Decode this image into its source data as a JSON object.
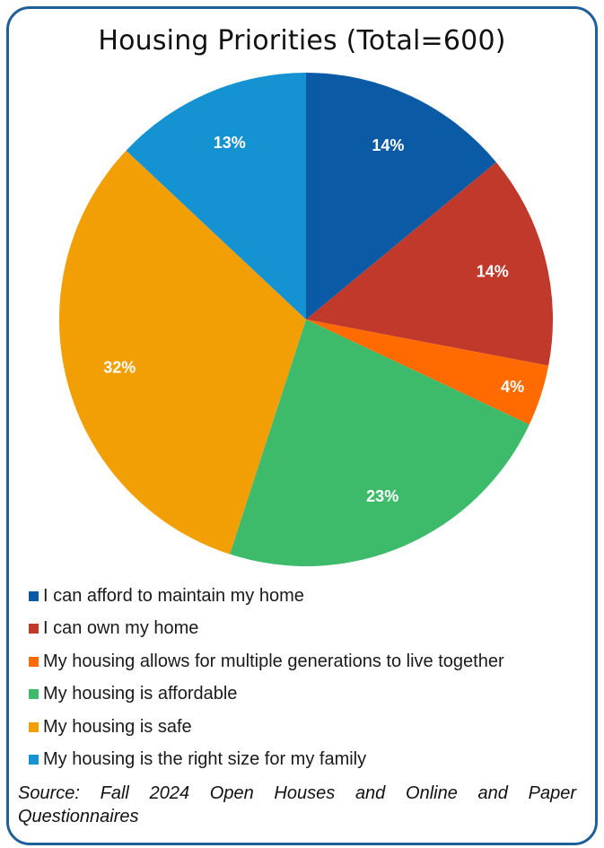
{
  "title": "Housing Priorities (Total=600)",
  "chart_data": {
    "type": "pie",
    "categories": [
      "I can afford to maintain my home",
      "I can own my home",
      "My housing allows for multiple generations to live together",
      "My housing is affordable",
      "My housing is safe",
      "My housing is the right size for my family"
    ],
    "values": [
      14,
      14,
      4,
      23,
      32,
      13
    ],
    "labels": [
      "14%",
      "14%",
      "4%",
      "23%",
      "32%",
      "13%"
    ],
    "colors": [
      "#0a5aa6",
      "#c0392b",
      "#ff6b00",
      "#3dbb6b",
      "#f29f05",
      "#1592d1"
    ],
    "legend_position": "bottom",
    "start": "top",
    "direction": "clockwise"
  },
  "legend": [
    "I can afford to maintain my home",
    "I can own my home",
    "My housing allows for multiple generations to live together",
    "My housing is affordable",
    "My housing is safe",
    "My housing is the right size for my family"
  ],
  "source": "Source: Fall 2024 Open Houses and Online and Paper Questionnaires"
}
